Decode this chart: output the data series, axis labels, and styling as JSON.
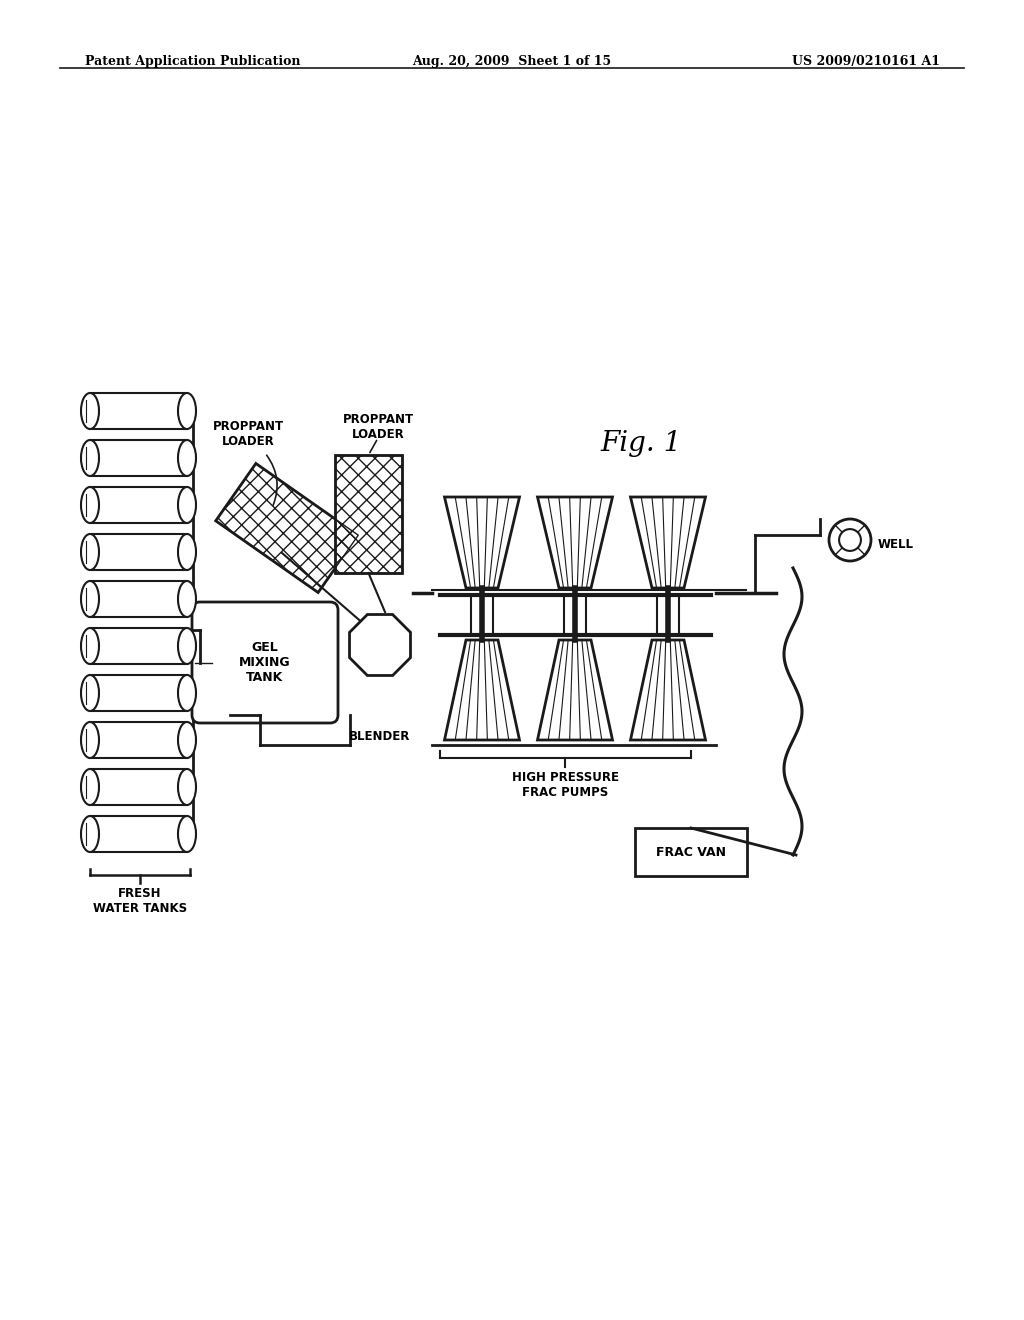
{
  "bg_color": "#ffffff",
  "line_color": "#1a1a1a",
  "header_left": "Patent Application Publication",
  "header_mid": "Aug. 20, 2009  Sheet 1 of 15",
  "header_right": "US 2009/0210161 A1",
  "fig_label": "Fig. 1",
  "labels": {
    "proppant_loader_1": "PROPPANT\nLOADER",
    "proppant_loader_2": "PROPPANT\nLOADER",
    "gel_mixing_tank": "GEL\nMIXING\nTANK",
    "blender": "BLENDER",
    "high_pressure": "HIGH PRESSURE\nFRAC PUMPS",
    "well": "WELL",
    "frac_van": "FRAC VAN",
    "fresh_water_tanks": "FRESH\nWATER TANKS"
  }
}
